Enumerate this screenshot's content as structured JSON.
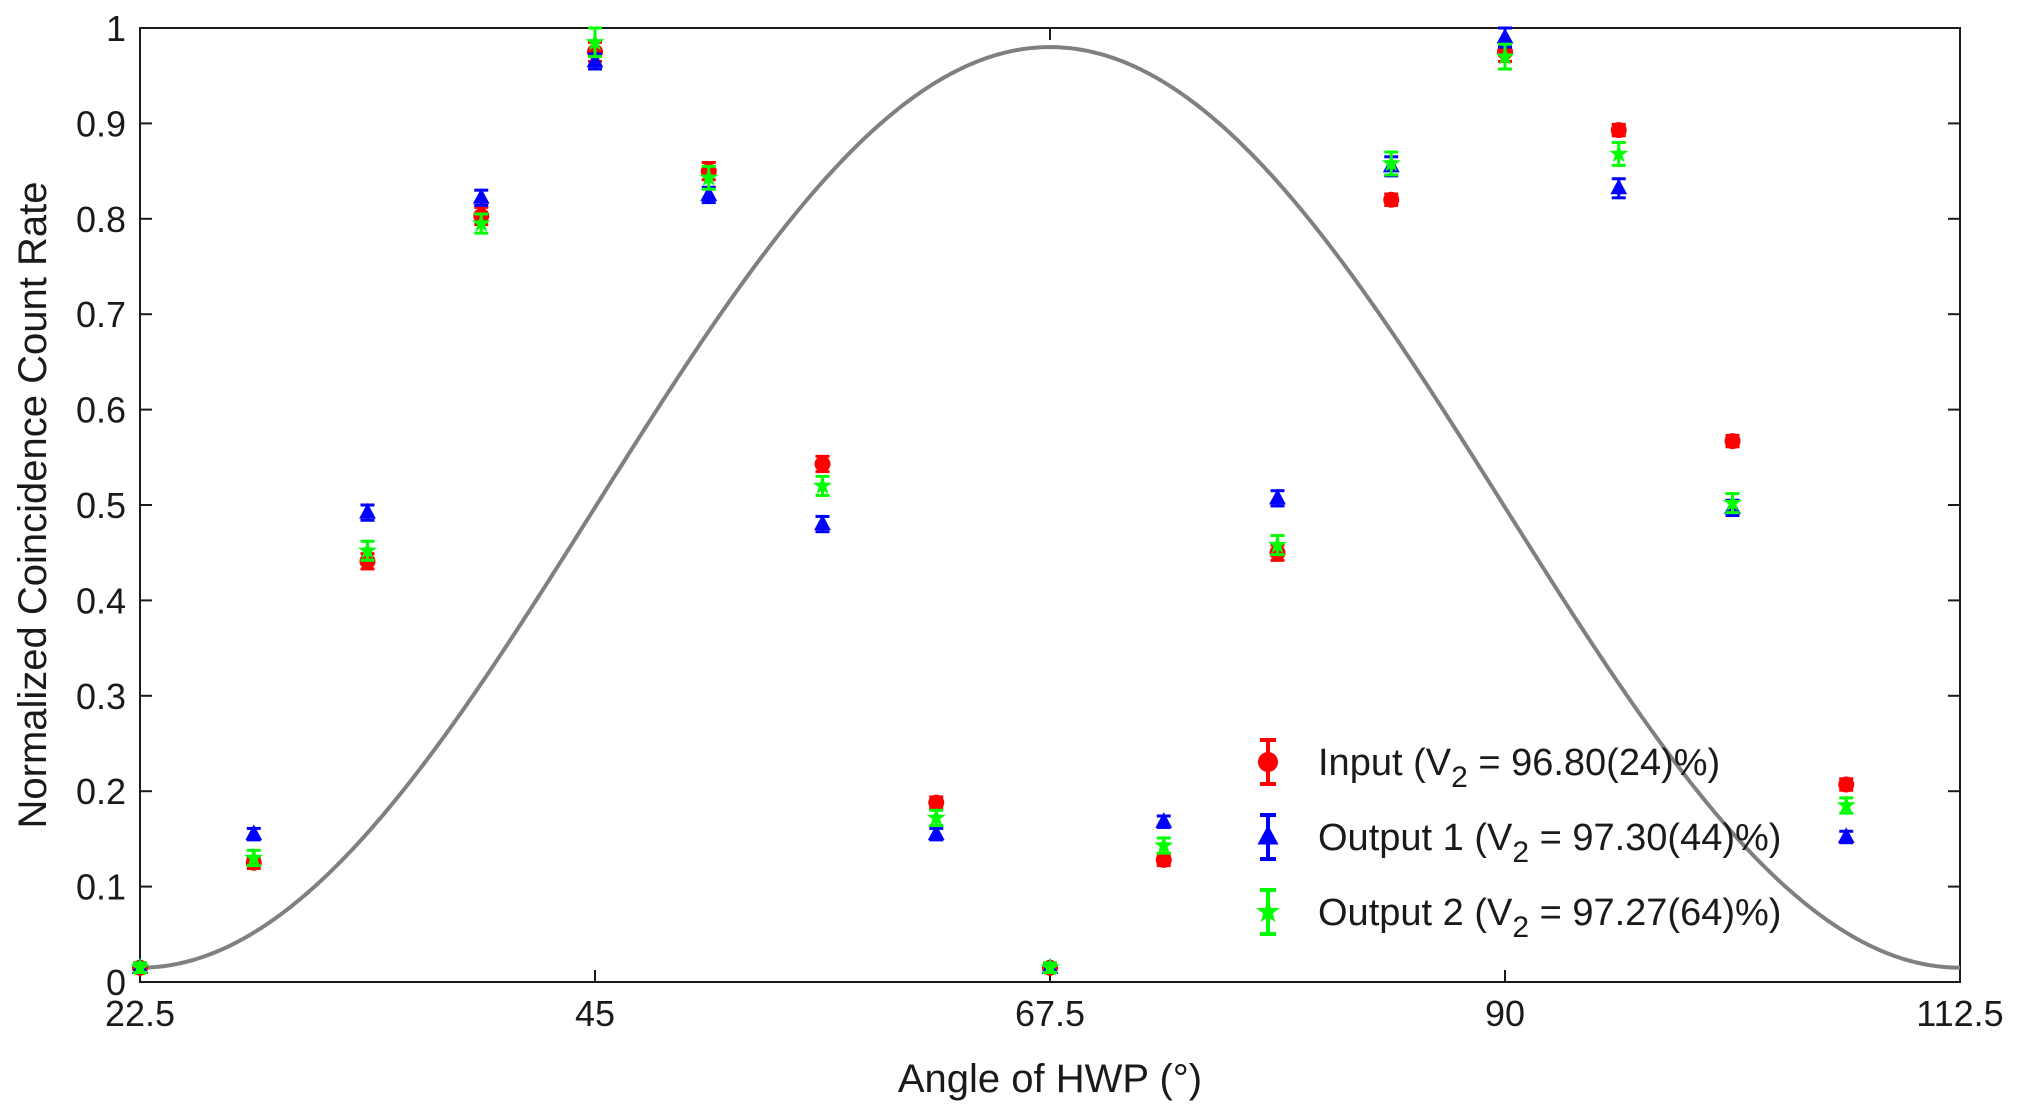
{
  "chart_data": {
    "type": "scatter",
    "xlabel": "Angle of HWP (°)",
    "ylabel": "Normalized Coincidence Count Rate",
    "xlim": [
      22.5,
      112.5
    ],
    "ylim": [
      0,
      1
    ],
    "xticks": [
      "22.5",
      "45",
      "67.5",
      "90",
      "112.5"
    ],
    "yticks": [
      "0",
      "0.1",
      "0.2",
      "0.3",
      "0.4",
      "0.5",
      "0.6",
      "0.7",
      "0.8",
      "0.9",
      "1"
    ],
    "grid": false,
    "legend_position": "bottom-right",
    "fit_curve": {
      "color": "#808080",
      "model": "y = 0.4975 - 0.4825*cos(4*(x - 22.5°))"
    },
    "series": [
      {
        "name": "Input",
        "legend_pre": "Input (V",
        "legend_sub": "2",
        "legend_post": " = 96.80(24)%)",
        "marker": "circle",
        "color": "#ff0000",
        "x": [
          22.5,
          28.125,
          33.75,
          39.375,
          45,
          50.625,
          56.25,
          61.875,
          67.5,
          73.125,
          78.75,
          84.375,
          90,
          95.625,
          101.25,
          106.875
        ],
        "y": [
          0.015,
          0.125,
          0.441,
          0.803,
          0.975,
          0.85,
          0.543,
          0.188,
          0.015,
          0.128,
          0.45,
          0.82,
          0.975,
          0.893,
          0.567,
          0.207
        ],
        "err": [
          0.005,
          0.006,
          0.008,
          0.009,
          0.01,
          0.009,
          0.008,
          0.006,
          0.005,
          0.006,
          0.008,
          0.006,
          0.01,
          0.006,
          0.006,
          0.006
        ]
      },
      {
        "name": "Output 1",
        "legend_pre": "Output 1 (V",
        "legend_sub": "2",
        "legend_post": " = 97.30(44)%)",
        "marker": "triangle",
        "color": "#0000ff",
        "x": [
          22.5,
          28.125,
          33.75,
          39.375,
          45,
          50.625,
          56.25,
          61.875,
          67.5,
          73.125,
          78.75,
          84.375,
          90,
          95.625,
          101.25,
          106.875
        ],
        "y": [
          0.015,
          0.155,
          0.492,
          0.822,
          0.965,
          0.825,
          0.48,
          0.155,
          0.015,
          0.168,
          0.507,
          0.855,
          0.99,
          0.832,
          0.497,
          0.152
        ],
        "err": [
          0.005,
          0.006,
          0.008,
          0.008,
          0.008,
          0.008,
          0.008,
          0.006,
          0.005,
          0.006,
          0.008,
          0.01,
          0.01,
          0.01,
          0.008,
          0.006
        ]
      },
      {
        "name": "Output 2",
        "legend_pre": "Output 2 (V",
        "legend_sub": "2",
        "legend_post": " = 97.27(64)%)",
        "marker": "star",
        "color": "#00ff00",
        "x": [
          22.5,
          28.125,
          33.75,
          39.375,
          45,
          50.625,
          56.25,
          61.875,
          67.5,
          73.125,
          78.75,
          84.375,
          90,
          95.625,
          101.25,
          106.875
        ],
        "y": [
          0.015,
          0.13,
          0.452,
          0.795,
          0.985,
          0.843,
          0.52,
          0.172,
          0.015,
          0.143,
          0.458,
          0.858,
          0.97,
          0.868,
          0.502,
          0.185
        ],
        "err": [
          0.005,
          0.008,
          0.01,
          0.01,
          0.015,
          0.012,
          0.01,
          0.008,
          0.005,
          0.008,
          0.01,
          0.012,
          0.013,
          0.012,
          0.01,
          0.008
        ]
      }
    ]
  }
}
